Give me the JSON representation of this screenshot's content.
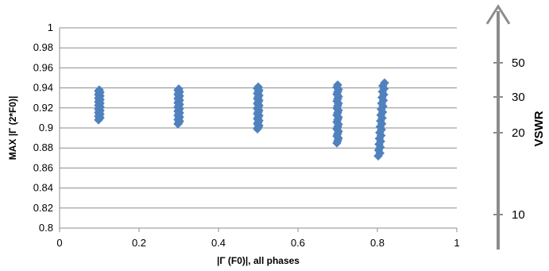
{
  "chart_data": {
    "type": "scatter",
    "xlabel": "|Γ (F0)|, all phases",
    "ylabel": "MAX |Γ (2*F0)|",
    "xlim": [
      0,
      1
    ],
    "ylim": [
      0.8,
      1
    ],
    "x_ticks": [
      "0",
      "0.2",
      "0.4",
      "0.6",
      "0.8",
      "1"
    ],
    "y_ticks": [
      "0.8",
      "0.82",
      "0.84",
      "0.86",
      "0.88",
      "0.9",
      "0.92",
      "0.94",
      "0.96",
      "0.98",
      "1"
    ],
    "grid": true,
    "marker_color": "#4F81BD",
    "series": [
      {
        "clusters": [
          {
            "x": 0.1,
            "y_min": 0.908,
            "y_max": 0.938
          },
          {
            "x": 0.3,
            "y_min": 0.904,
            "y_max": 0.939
          },
          {
            "x": 0.5,
            "y_min": 0.899,
            "y_max": 0.941
          },
          {
            "x": 0.7,
            "y_min": 0.885,
            "y_max": 0.943
          },
          {
            "x": 0.81,
            "x_spread": 0.012,
            "y_min": 0.872,
            "y_max": 0.945
          }
        ]
      }
    ],
    "secondary_axis": {
      "title": "VSWR",
      "ticks": [
        "10",
        "20",
        "30",
        "50"
      ],
      "tick_values": [
        10,
        20,
        30,
        50
      ]
    }
  }
}
